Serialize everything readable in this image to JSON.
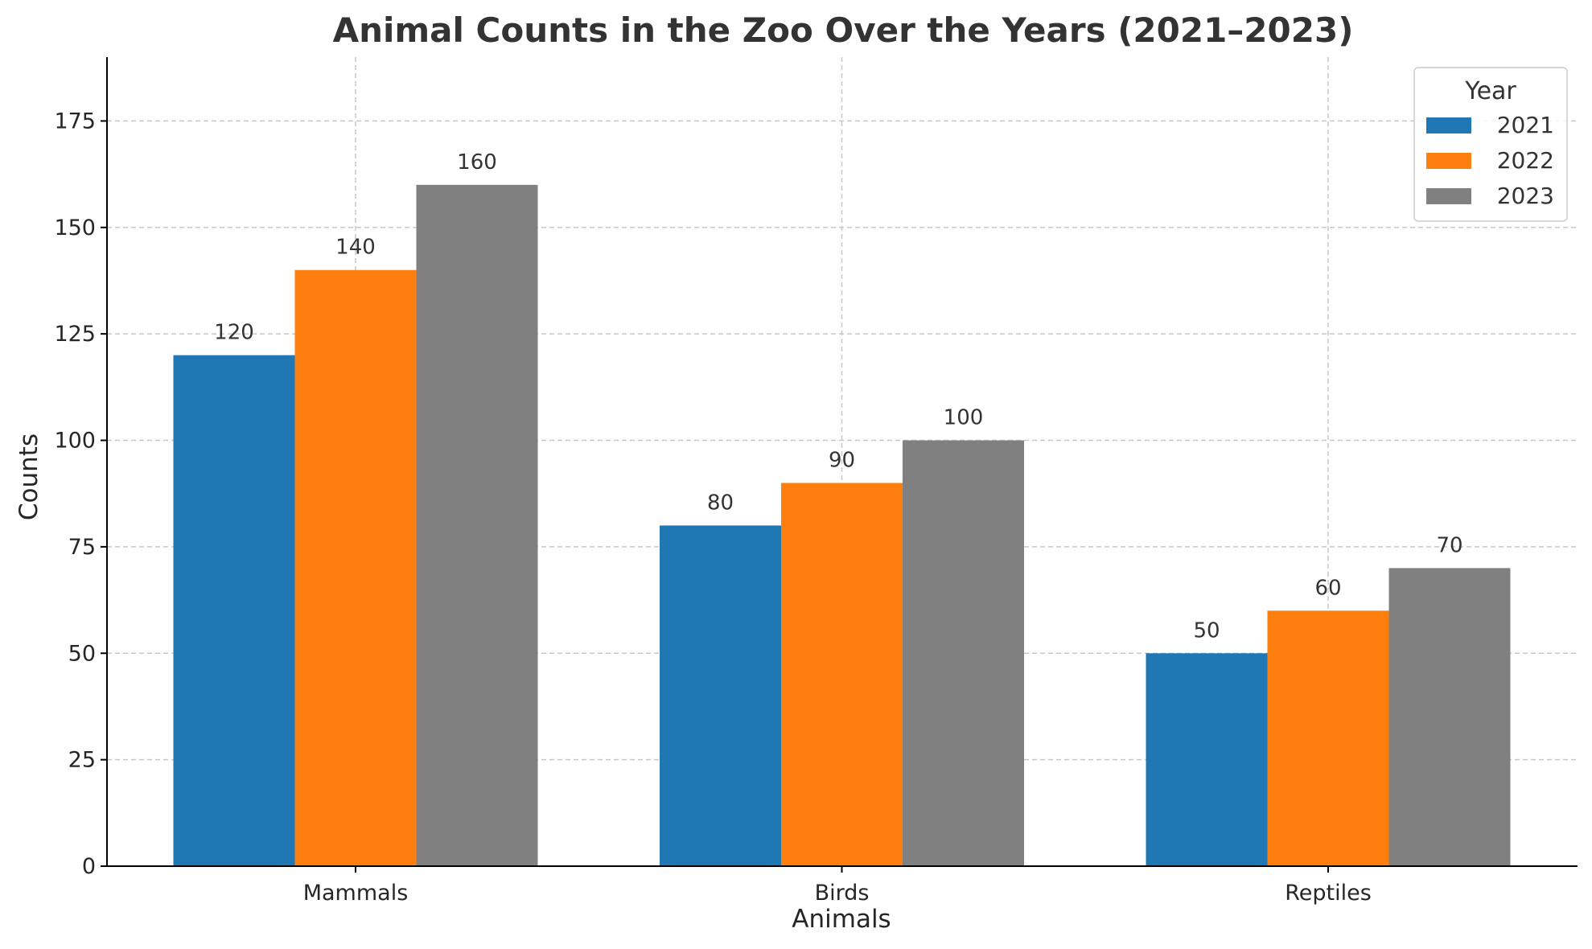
{
  "chart_data": {
    "type": "bar",
    "title": "Animal Counts in the Zoo Over the Years (2021–2023)",
    "xlabel": "Animals",
    "ylabel": "Counts",
    "categories": [
      "Mammals",
      "Birds",
      "Reptiles"
    ],
    "series": [
      {
        "name": "2021",
        "values": [
          120,
          80,
          50
        ],
        "color": "#1f77b4"
      },
      {
        "name": "2022",
        "values": [
          140,
          90,
          60
        ],
        "color": "#ff7f0e"
      },
      {
        "name": "2023",
        "values": [
          160,
          100,
          70
        ],
        "color": "#808080"
      }
    ],
    "ylim": [
      0,
      190
    ],
    "yticks": [
      0,
      25,
      50,
      75,
      100,
      125,
      150,
      175
    ],
    "grid": true,
    "legend": {
      "title": "Year",
      "position": "top-right"
    }
  }
}
